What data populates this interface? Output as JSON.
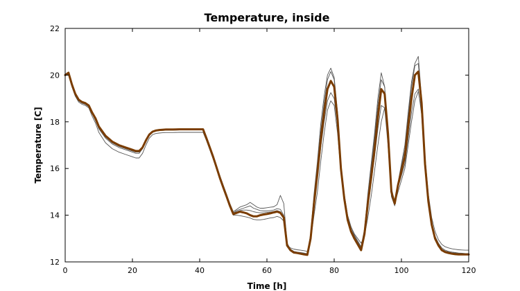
{
  "chart_data": {
    "type": "line",
    "title": "Temperature, inside",
    "xlabel": "Time [h]",
    "ylabel": "Temperature [C]",
    "xlim": [
      0,
      120
    ],
    "ylim": [
      12,
      22
    ],
    "xticks": [
      0,
      20,
      40,
      60,
      80,
      100,
      120
    ],
    "yticks": [
      12,
      14,
      16,
      18,
      20,
      22
    ],
    "grid": false,
    "legend": "none",
    "x": [
      0,
      1,
      2,
      3,
      4,
      5,
      6,
      7,
      8,
      9,
      10,
      12,
      14,
      16,
      18,
      20,
      21,
      22,
      23,
      24,
      25,
      26,
      27,
      28,
      29,
      30,
      32,
      34,
      36,
      38,
      40,
      41,
      42,
      43,
      44,
      45,
      46,
      47,
      48,
      49,
      50,
      51,
      52,
      53,
      54,
      55,
      56,
      57,
      58,
      59,
      60,
      61,
      62,
      63,
      64,
      65,
      66,
      67,
      68,
      69,
      70,
      71,
      72,
      73,
      74,
      75,
      76,
      77,
      78,
      79,
      80,
      81,
      82,
      83,
      84,
      85,
      86,
      87,
      88,
      89,
      90,
      91,
      92,
      93,
      94,
      95,
      96,
      97,
      98,
      99,
      100,
      101,
      102,
      103,
      104,
      105,
      106,
      107,
      108,
      109,
      110,
      111,
      112,
      113,
      114,
      115,
      116,
      117,
      118,
      119,
      120
    ],
    "series": [
      {
        "role": "main",
        "color": "#7a3c00",
        "values": [
          20.0,
          20.1,
          19.6,
          19.2,
          18.95,
          18.85,
          18.8,
          18.7,
          18.4,
          18.15,
          17.8,
          17.4,
          17.15,
          17.0,
          16.9,
          16.8,
          16.75,
          16.75,
          16.9,
          17.2,
          17.45,
          17.58,
          17.63,
          17.65,
          17.66,
          17.67,
          17.67,
          17.68,
          17.68,
          17.68,
          17.68,
          17.68,
          17.3,
          16.9,
          16.5,
          16.05,
          15.6,
          15.2,
          14.8,
          14.4,
          14.05,
          14.1,
          14.15,
          14.12,
          14.08,
          14.0,
          13.95,
          13.95,
          14.0,
          14.03,
          14.05,
          14.08,
          14.12,
          14.15,
          14.1,
          13.9,
          12.7,
          12.5,
          12.4,
          12.38,
          12.35,
          12.32,
          12.3,
          13.0,
          14.5,
          15.8,
          17.2,
          18.4,
          19.4,
          19.75,
          19.5,
          18.1,
          16.0,
          14.7,
          13.8,
          13.3,
          13.0,
          12.75,
          12.5,
          13.2,
          14.5,
          15.6,
          16.8,
          18.2,
          19.4,
          19.2,
          17.5,
          15.0,
          14.5,
          15.3,
          15.9,
          16.5,
          17.8,
          19.0,
          20.0,
          20.15,
          18.8,
          16.2,
          14.6,
          13.6,
          13.0,
          12.7,
          12.5,
          12.42,
          12.38,
          12.35,
          12.33,
          12.32,
          12.32,
          12.32,
          12.32
        ]
      },
      {
        "role": "ensemble",
        "color": "#555555",
        "values": [
          20.0,
          20.1,
          19.6,
          19.2,
          18.9,
          18.8,
          18.75,
          18.65,
          18.35,
          18.05,
          17.7,
          17.3,
          17.05,
          16.9,
          16.8,
          16.7,
          16.65,
          16.65,
          16.85,
          17.15,
          17.4,
          17.55,
          17.6,
          17.62,
          17.63,
          17.64,
          17.64,
          17.65,
          17.65,
          17.65,
          17.65,
          17.65,
          17.3,
          16.95,
          16.55,
          16.1,
          15.7,
          15.3,
          14.9,
          14.5,
          14.15,
          14.25,
          14.35,
          14.4,
          14.45,
          14.55,
          14.45,
          14.35,
          14.3,
          14.3,
          14.32,
          14.34,
          14.36,
          14.45,
          14.85,
          14.5,
          12.8,
          12.55,
          12.45,
          12.42,
          12.4,
          12.38,
          12.35,
          13.2,
          14.9,
          16.3,
          17.9,
          19.1,
          20.0,
          20.3,
          19.9,
          18.4,
          16.2,
          14.9,
          14.0,
          13.5,
          13.15,
          12.9,
          12.65,
          13.4,
          14.9,
          16.2,
          17.5,
          19.0,
          20.1,
          19.5,
          17.3,
          14.8,
          14.4,
          15.4,
          16.2,
          17.0,
          18.4,
          19.7,
          20.5,
          20.8,
          19.0,
          16.3,
          14.7,
          13.7,
          13.1,
          12.8,
          12.6,
          12.5,
          12.45,
          12.42,
          12.4,
          12.38,
          12.37,
          12.36,
          12.35
        ]
      },
      {
        "role": "ensemble",
        "color": "#555555",
        "values": [
          20.0,
          20.05,
          19.55,
          19.15,
          18.9,
          18.8,
          18.75,
          18.65,
          18.35,
          18.1,
          17.75,
          17.35,
          17.1,
          16.95,
          16.85,
          16.75,
          16.7,
          16.7,
          16.85,
          17.15,
          17.42,
          17.56,
          17.61,
          17.63,
          17.64,
          17.65,
          17.65,
          17.66,
          17.66,
          17.66,
          17.66,
          17.66,
          17.3,
          16.9,
          16.5,
          16.05,
          15.65,
          15.25,
          14.85,
          14.45,
          14.1,
          14.2,
          14.25,
          14.3,
          14.35,
          14.4,
          14.3,
          14.25,
          14.2,
          14.18,
          14.18,
          14.2,
          14.22,
          14.28,
          14.25,
          14.0,
          12.75,
          12.5,
          12.42,
          12.4,
          12.38,
          12.35,
          12.32,
          13.1,
          14.7,
          16.1,
          17.6,
          18.8,
          19.8,
          20.15,
          19.8,
          18.2,
          16.1,
          14.8,
          13.9,
          13.4,
          13.1,
          12.85,
          12.6,
          13.3,
          14.7,
          16.0,
          17.3,
          18.7,
          19.8,
          19.5,
          17.4,
          14.9,
          14.45,
          15.4,
          16.1,
          16.8,
          18.2,
          19.5,
          20.4,
          20.5,
          18.9,
          16.2,
          14.6,
          13.65,
          13.05,
          12.75,
          12.55,
          12.46,
          12.42,
          12.39,
          12.37,
          12.36,
          12.35,
          12.35,
          12.35
        ]
      },
      {
        "role": "ensemble",
        "color": "#555555",
        "values": [
          20.0,
          20.05,
          19.55,
          19.15,
          18.9,
          18.8,
          18.75,
          18.65,
          18.35,
          18.1,
          17.75,
          17.35,
          17.1,
          16.95,
          16.85,
          16.75,
          16.7,
          16.7,
          16.85,
          17.15,
          17.42,
          17.56,
          17.61,
          17.63,
          17.64,
          17.65,
          17.65,
          17.66,
          17.66,
          17.66,
          17.66,
          17.66,
          17.3,
          16.9,
          16.5,
          16.05,
          15.65,
          15.25,
          14.85,
          14.45,
          14.1,
          14.15,
          14.2,
          14.22,
          14.22,
          14.2,
          14.15,
          14.12,
          14.1,
          14.1,
          14.12,
          14.14,
          14.16,
          14.2,
          14.15,
          13.95,
          12.72,
          12.5,
          12.42,
          12.4,
          12.38,
          12.35,
          12.32,
          13.05,
          14.4,
          15.6,
          16.9,
          18.0,
          18.9,
          19.25,
          19.0,
          17.8,
          15.9,
          14.7,
          13.85,
          13.35,
          13.05,
          12.8,
          12.55,
          13.1,
          14.3,
          15.4,
          16.5,
          17.7,
          18.7,
          18.6,
          17.0,
          14.9,
          14.45,
          15.2,
          15.7,
          16.2,
          17.3,
          18.4,
          19.2,
          19.4,
          18.3,
          16.0,
          14.6,
          13.65,
          13.05,
          12.75,
          12.55,
          12.46,
          12.42,
          12.39,
          12.37,
          12.36,
          12.35,
          12.35,
          12.35
        ]
      },
      {
        "role": "ensemble",
        "color": "#555555",
        "values": [
          20.0,
          20.0,
          19.5,
          19.1,
          18.85,
          18.75,
          18.7,
          18.6,
          18.25,
          17.95,
          17.55,
          17.1,
          16.85,
          16.7,
          16.6,
          16.5,
          16.45,
          16.45,
          16.65,
          17.0,
          17.3,
          17.45,
          17.5,
          17.52,
          17.53,
          17.54,
          17.54,
          17.55,
          17.55,
          17.55,
          17.55,
          17.55,
          17.2,
          16.8,
          16.4,
          16.0,
          15.6,
          15.2,
          14.8,
          14.4,
          14.0,
          14.0,
          13.98,
          13.95,
          13.92,
          13.88,
          13.82,
          13.8,
          13.8,
          13.82,
          13.85,
          13.88,
          13.9,
          13.95,
          13.9,
          13.75,
          12.7,
          12.6,
          12.55,
          12.52,
          12.5,
          12.48,
          12.45,
          12.9,
          14.0,
          15.0,
          16.3,
          17.5,
          18.5,
          18.9,
          18.7,
          17.5,
          15.8,
          14.7,
          13.9,
          13.5,
          13.2,
          13.0,
          12.8,
          13.1,
          13.9,
          14.8,
          15.9,
          17.0,
          18.0,
          18.6,
          17.5,
          15.2,
          14.5,
          15.0,
          15.5,
          16.0,
          17.0,
          18.0,
          18.9,
          19.3,
          18.5,
          16.5,
          14.9,
          13.9,
          13.3,
          12.95,
          12.75,
          12.65,
          12.6,
          12.56,
          12.54,
          12.52,
          12.51,
          12.5,
          12.5
        ]
      }
    ]
  }
}
